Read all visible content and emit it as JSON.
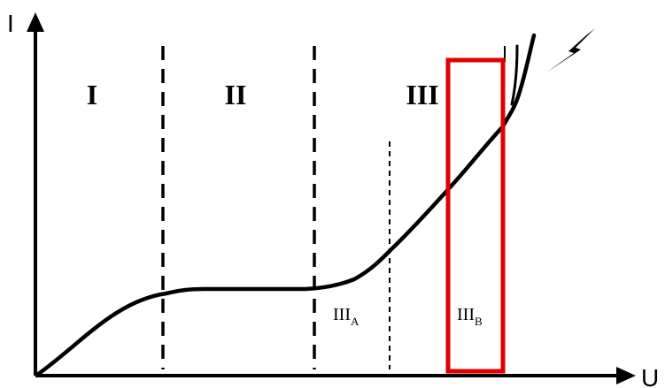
{
  "axes": {
    "y_label": "I",
    "x_label": "U"
  },
  "regions": {
    "r1": "I",
    "r2": "II",
    "r3": "III"
  },
  "subregions": {
    "a_main": "III",
    "a_sub": "A",
    "b_main": "III",
    "b_sub": "B"
  },
  "colors": {
    "line": "#000000",
    "highlight": "#e00000",
    "background": "#ffffff"
  },
  "icons": {
    "breakdown": "lightning-bolt-icon"
  }
}
